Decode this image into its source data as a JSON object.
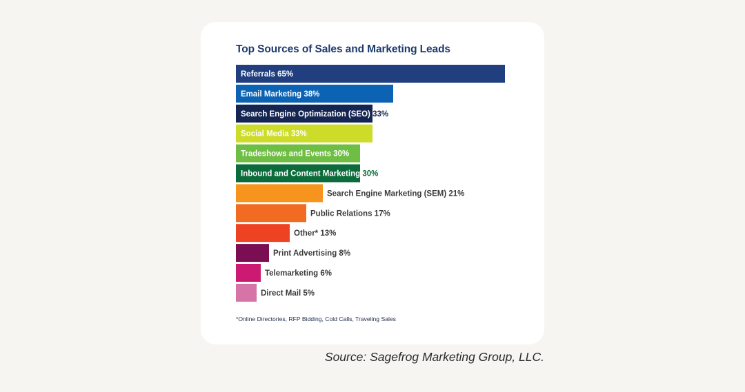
{
  "chart_data": {
    "type": "bar",
    "orientation": "horizontal",
    "title": "Top Sources of Sales and Marketing Leads",
    "xlim": [
      0,
      65
    ],
    "grid": false,
    "bars": [
      {
        "category": "Referrals",
        "value_text": "65%",
        "value": 65,
        "color": "#213f7f",
        "label_position": "inside",
        "inside_color": "#ffffff",
        "value_color": "#ffffff"
      },
      {
        "category": "Email Marketing",
        "value_text": "38%",
        "value": 38,
        "color": "#0d63b3",
        "label_position": "inside",
        "inside_color": "#ffffff",
        "value_color": "#ffffff"
      },
      {
        "category": "Search Engine Optimization (SEO)",
        "value_text": "33%",
        "value": 33,
        "color": "#152552",
        "label_position": "split",
        "inside_color": "#ffffff",
        "value_color": "#152552"
      },
      {
        "category": "Social Media",
        "value_text": "33%",
        "value": 33,
        "color": "#cddc29",
        "label_position": "inside",
        "inside_color": "#ffffff",
        "value_color": "#ffffff"
      },
      {
        "category": "Tradeshows and Events",
        "value_text": "30%",
        "value": 30,
        "color": "#6fbe44",
        "label_position": "inside",
        "inside_color": "#ffffff",
        "value_color": "#ffffff"
      },
      {
        "category": "Inbound and Content Marketing",
        "value_text": "30%",
        "value": 30,
        "color": "#0b6b3a",
        "label_position": "split",
        "inside_color": "#ffffff",
        "value_color": "#0b6b3a"
      },
      {
        "category": "Search Engine Marketing (SEM)",
        "value_text": "21%",
        "value": 21,
        "color": "#f7941d",
        "label_position": "outside",
        "inside_color": "#ffffff",
        "value_color": "#3a3a3a"
      },
      {
        "category": "Public Relations",
        "value_text": "17%",
        "value": 17,
        "color": "#f26b22",
        "label_position": "outside",
        "inside_color": "#ffffff",
        "value_color": "#3a3a3a"
      },
      {
        "category": "Other*",
        "value_text": "13%",
        "value": 13,
        "color": "#ee4323",
        "label_position": "outside",
        "inside_color": "#ffffff",
        "value_color": "#3a3a3a"
      },
      {
        "category": "Print Advertising",
        "value_text": "8%",
        "value": 8,
        "color": "#7b0d53",
        "label_position": "outside",
        "inside_color": "#ffffff",
        "value_color": "#3a3a3a"
      },
      {
        "category": "Telemarketing",
        "value_text": "6%",
        "value": 6,
        "color": "#cc1a72",
        "label_position": "outside",
        "inside_color": "#ffffff",
        "value_color": "#3a3a3a"
      },
      {
        "category": "Direct Mail",
        "value_text": "5%",
        "value": 5,
        "color": "#d674a8",
        "label_position": "outside",
        "inside_color": "#ffffff",
        "value_color": "#3a3a3a"
      }
    ],
    "footnote": "*Online Directories, RFP Bidding, Cold Calls, Traveling Sales"
  },
  "source": "Source: Sagefrog Marketing Group, LLC.",
  "colors": {
    "page_background": "#f6f5f2",
    "card_background": "#ffffff",
    "title": "#1d3a6e"
  }
}
